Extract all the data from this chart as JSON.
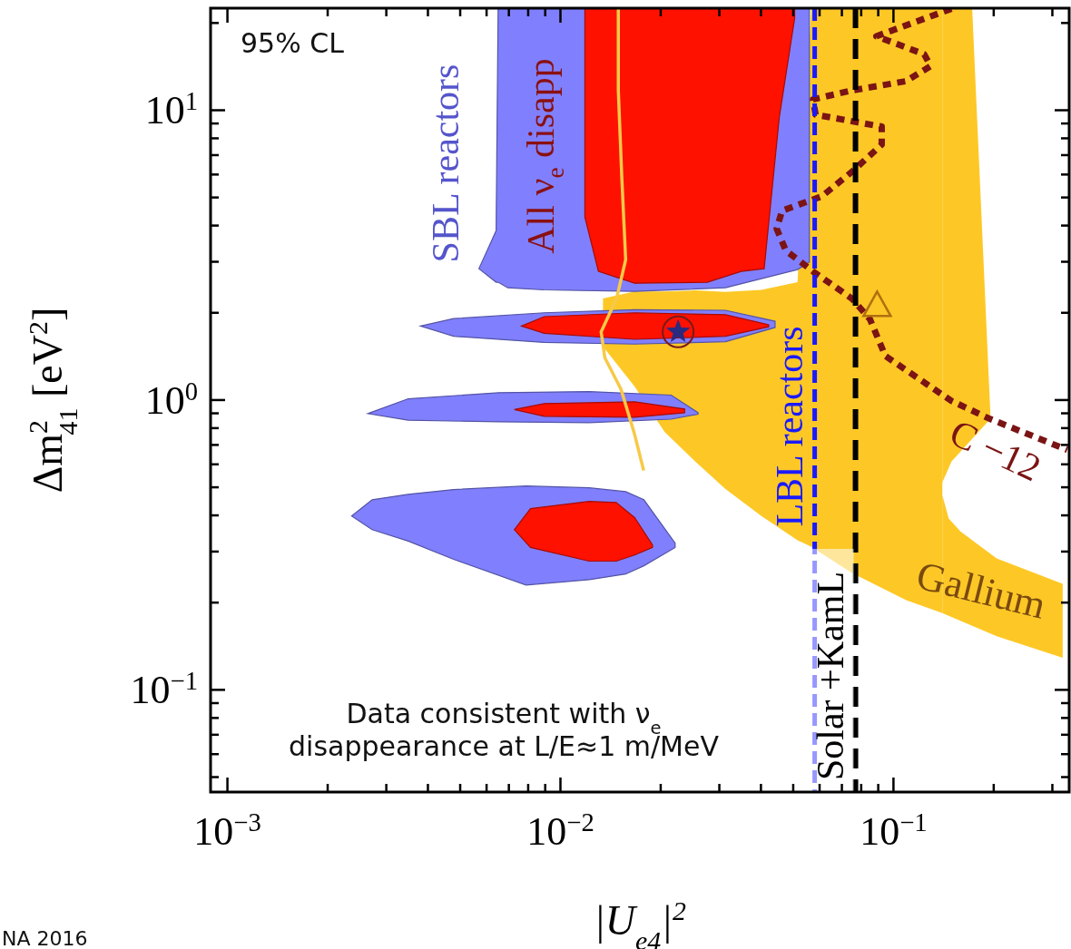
{
  "chart_data": {
    "type": "line",
    "xlabel": "|U$_{e4}$|$^{2}$",
    "ylabel": "Δm$^{2}$$_{41}$ [eV$^{2}$]",
    "log": "xy",
    "grid": false,
    "xlim": [
      0.00089,
      0.337
    ],
    "ylim": [
      0.0444,
      22.5
    ],
    "xticks": [
      {
        "value": 0.001,
        "label": "10$^{−3}$"
      },
      {
        "value": 0.002,
        "label": null
      },
      {
        "value": 0.003,
        "label": null
      },
      {
        "value": 0.004,
        "label": null
      },
      {
        "value": 0.005,
        "label": null
      },
      {
        "value": 0.006,
        "label": null
      },
      {
        "value": 0.007,
        "label": null
      },
      {
        "value": 0.008,
        "label": null
      },
      {
        "value": 0.009,
        "label": null
      },
      {
        "value": 0.01,
        "label": "10$^{−2}$"
      },
      {
        "value": 0.02,
        "label": null
      },
      {
        "value": 0.03,
        "label": null
      },
      {
        "value": 0.04,
        "label": null
      },
      {
        "value": 0.05,
        "label": null
      },
      {
        "value": 0.06,
        "label": null
      },
      {
        "value": 0.07,
        "label": null
      },
      {
        "value": 0.08,
        "label": null
      },
      {
        "value": 0.09,
        "label": null
      },
      {
        "value": 0.1,
        "label": "10$^{−1}$"
      },
      {
        "value": 0.2,
        "label": null
      },
      {
        "value": 0.3,
        "label": null
      }
    ],
    "yticks": [
      {
        "value": 0.05,
        "label": null
      },
      {
        "value": 0.06,
        "label": null
      },
      {
        "value": 0.07,
        "label": null
      },
      {
        "value": 0.08,
        "label": null
      },
      {
        "value": 0.09,
        "label": null
      },
      {
        "value": 0.1,
        "label": "10$^{−1}$"
      },
      {
        "value": 0.2,
        "label": null
      },
      {
        "value": 0.3,
        "label": null
      },
      {
        "value": 0.4,
        "label": null
      },
      {
        "value": 0.5,
        "label": null
      },
      {
        "value": 0.6,
        "label": null
      },
      {
        "value": 0.7,
        "label": null
      },
      {
        "value": 0.8,
        "label": null
      },
      {
        "value": 0.9,
        "label": null
      },
      {
        "value": 1,
        "label": "10$^{0}$"
      },
      {
        "value": 2,
        "label": null
      },
      {
        "value": 3,
        "label": null
      },
      {
        "value": 4,
        "label": null
      },
      {
        "value": 5,
        "label": null
      },
      {
        "value": 6,
        "label": null
      },
      {
        "value": 7,
        "label": null
      },
      {
        "value": 8,
        "label": null
      },
      {
        "value": 9,
        "label": null
      },
      {
        "value": 10,
        "label": "10$^{1}$"
      },
      {
        "value": 20,
        "label": null
      }
    ],
    "series": [
      {
        "color": "#fdc826",
        "x": [
          0.01342,
          0.0167,
          0.02054,
          0.02541,
          0.03124,
          0.04012,
          0.05152,
          0.05658,
          0.07499,
          0.1092,
          0.1402
        ],
        "values": [
          null,
          null,
          null,
          null,
          null,
          null,
          null,
          null,
          null,
          null,
          null
        ],
        "upper": [
          2.24,
          2.37,
          2.37,
          2.39,
          2.36,
          2.4,
          2.55,
          22.5,
          22.5,
          22.5,
          22.5
        ],
        "lower": [
          1.53,
          1.114,
          0.777,
          0.613,
          0.494,
          0.398,
          0.328,
          0.312,
          0.253,
          0.204,
          0.184
        ]
      },
      {
        "color": "#fdc826",
        "x": [
          0.1402,
          0.1493,
          0.1723,
          0.1953
        ],
        "values": [
          null,
          null,
          null,
          null
        ],
        "upper": [
          22.5,
          22.5,
          22.5,
          0.911
        ],
        "lower": [
          0.52,
          0.613,
          0.734,
          0.86
        ]
      },
      {
        "color": "#fdc826",
        "x": [
          0.1402,
          0.1465,
          0.1589,
          0.2041,
          0.3222
        ],
        "values": [
          null,
          null,
          null,
          null,
          null
        ],
        "upper": [
          0.47,
          0.39,
          0.352,
          0.284,
          0.232
        ],
        "lower": [
          0.184,
          0.18,
          0.173,
          0.153,
          0.129
        ]
      },
      {
        "color": "#8080ff",
        "x": [
          0.00569,
          0.00641,
          0.0065,
          0.00695,
          0.00893,
          0.0167,
          0.0313,
          0.0515,
          0.0559
        ],
        "values": [
          null,
          null,
          null,
          null,
          null,
          null,
          null,
          null,
          null
        ],
        "upper": [
          2.84,
          3.84,
          22.5,
          22.5,
          22.5,
          22.5,
          22.5,
          22.5,
          22.5
        ],
        "lower": [
          2.84,
          2.55,
          2.55,
          2.44,
          2.4,
          2.37,
          2.44,
          2.82,
          2.99
        ]
      },
      {
        "color": "#8080ff",
        "x": [
          0.0038,
          0.00478,
          0.00894,
          0.0167,
          0.0313,
          0.0441
        ],
        "values": [
          null,
          null,
          null,
          null,
          null,
          null
        ],
        "upper": [
          1.8,
          1.91,
          2.0,
          2.05,
          2.04,
          1.87
        ],
        "lower": [
          1.8,
          1.66,
          1.58,
          1.56,
          1.59,
          1.78
        ]
      },
      {
        "color": "#8080ff",
        "x": [
          0.00264,
          0.00349,
          0.00653,
          0.0122,
          0.0215,
          0.0259
        ],
        "values": [
          null,
          null,
          null,
          null,
          null,
          null
        ],
        "upper": [
          0.898,
          1.01,
          1.06,
          1.07,
          1.04,
          0.904
        ],
        "lower": [
          0.898,
          0.852,
          0.841,
          0.835,
          0.859,
          0.894
        ]
      },
      {
        "color": "#8080ff",
        "x": [
          0.00236,
          0.00272,
          0.00349,
          0.00478,
          0.00788,
          0.0122,
          0.0157,
          0.0178,
          0.0221
        ],
        "values": [
          null,
          null,
          null,
          null,
          null,
          null,
          null,
          null,
          null
        ],
        "upper": [
          0.398,
          0.453,
          0.473,
          0.491,
          0.505,
          0.498,
          0.483,
          0.453,
          0.321
        ],
        "lower": [
          0.398,
          0.357,
          0.326,
          0.282,
          0.23,
          0.24,
          0.251,
          0.268,
          0.31
        ]
      },
      {
        "color": "#ff1100",
        "x": [
          0.01184,
          0.013,
          0.0167,
          0.0276,
          0.0349,
          0.0409,
          0.0454,
          0.0505
        ],
        "values": [
          null,
          null,
          null,
          null,
          null,
          null,
          null,
          null
        ],
        "upper": [
          22.5,
          22.5,
          22.5,
          22.5,
          22.5,
          22.5,
          22.5,
          22.5
        ],
        "lower": [
          4.28,
          2.78,
          2.53,
          2.55,
          2.78,
          2.84,
          9.44,
          20.8
        ]
      },
      {
        "color": "#ff1100",
        "x": [
          0.00764,
          0.00894,
          0.0167,
          0.0313,
          0.0422
        ],
        "values": [
          null,
          null,
          null,
          null,
          null
        ],
        "upper": [
          1.8,
          1.94,
          2.0,
          1.97,
          1.82
        ],
        "lower": [
          1.8,
          1.7,
          1.62,
          1.66,
          1.79
        ]
      },
      {
        "color": "#ff1100",
        "x": [
          0.00727,
          0.00894,
          0.0167,
          0.0236
        ],
        "values": [
          null,
          null,
          null,
          null
        ],
        "upper": [
          0.927,
          0.972,
          0.986,
          0.931
        ],
        "lower": [
          0.927,
          0.879,
          0.872,
          0.904
        ]
      },
      {
        "color": "#ff1100",
        "x": [
          0.00727,
          0.00813,
          0.0122,
          0.0147,
          0.0167,
          0.0189
        ],
        "values": [
          null,
          null,
          null,
          null,
          null,
          null
        ],
        "upper": [
          0.357,
          0.422,
          0.447,
          0.443,
          0.393,
          0.316
        ],
        "lower": [
          0.357,
          0.31,
          0.278,
          0.278,
          0.292,
          0.31
        ]
      },
      {
        "color": "#f7c948",
        "line_style": "solid",
        "x": [
          0.01492,
          0.01492,
          0.0153,
          0.0157,
          0.01474,
          0.01325,
          0.01359,
          0.0152,
          0.0167,
          0.01778
        ],
        "values": [
          22.5,
          11.7,
          5.7,
          3.05,
          2.24,
          1.72,
          1.4,
          1.09,
          0.761,
          0.571
        ]
      },
      {
        "color": "#7b1414",
        "line_style": "dotted",
        "x": [
          0.1493,
          0.0888,
          0.1237,
          0.1292,
          0.1092,
          0.075,
          0.0573,
          0.0584,
          0.0922,
          0.0922,
          0.075,
          0.061,
          0.0463,
          0.0446,
          0.0475,
          0.0573,
          0.075,
          0.085,
          0.0945,
          0.1493,
          0.1953,
          0.3324
        ],
        "values": [
          22.4,
          18.0,
          15.6,
          14.2,
          12.6,
          11.7,
          10.9,
          9.65,
          8.78,
          7.61,
          6.13,
          5.05,
          4.5,
          3.9,
          3.28,
          2.78,
          2.24,
          1.9,
          1.42,
          0.993,
          0.86,
          0.673
        ]
      },
      {
        "type": "scatter",
        "marker": "star",
        "color": "#2a2a80",
        "x": [
          0.02256
        ],
        "values": [
          1.72
        ]
      },
      {
        "type": "scatter",
        "marker": "triangle",
        "color": "#b07010",
        "x": [
          0.0893
        ],
        "values": [
          2.11
        ]
      }
    ],
    "ref_lines": [
      {
        "axis": "x",
        "value": 0.058,
        "label": "LBL reactors",
        "color": "#1a1aff",
        "line_style": "dashed"
      },
      {
        "axis": "x",
        "value": 0.0769,
        "label": "Solar +KamL",
        "color": "#000000",
        "line_style": "dashed"
      }
    ],
    "annotations": [
      "95% CL",
      "Data consistent with ν$_{e}$\ndisappearance at L/E≈1 m/MeV",
      "NA 2016",
      "SBL reactors",
      "All ν$_{e}$ disapp",
      "Gallium",
      "C −12"
    ]
  }
}
